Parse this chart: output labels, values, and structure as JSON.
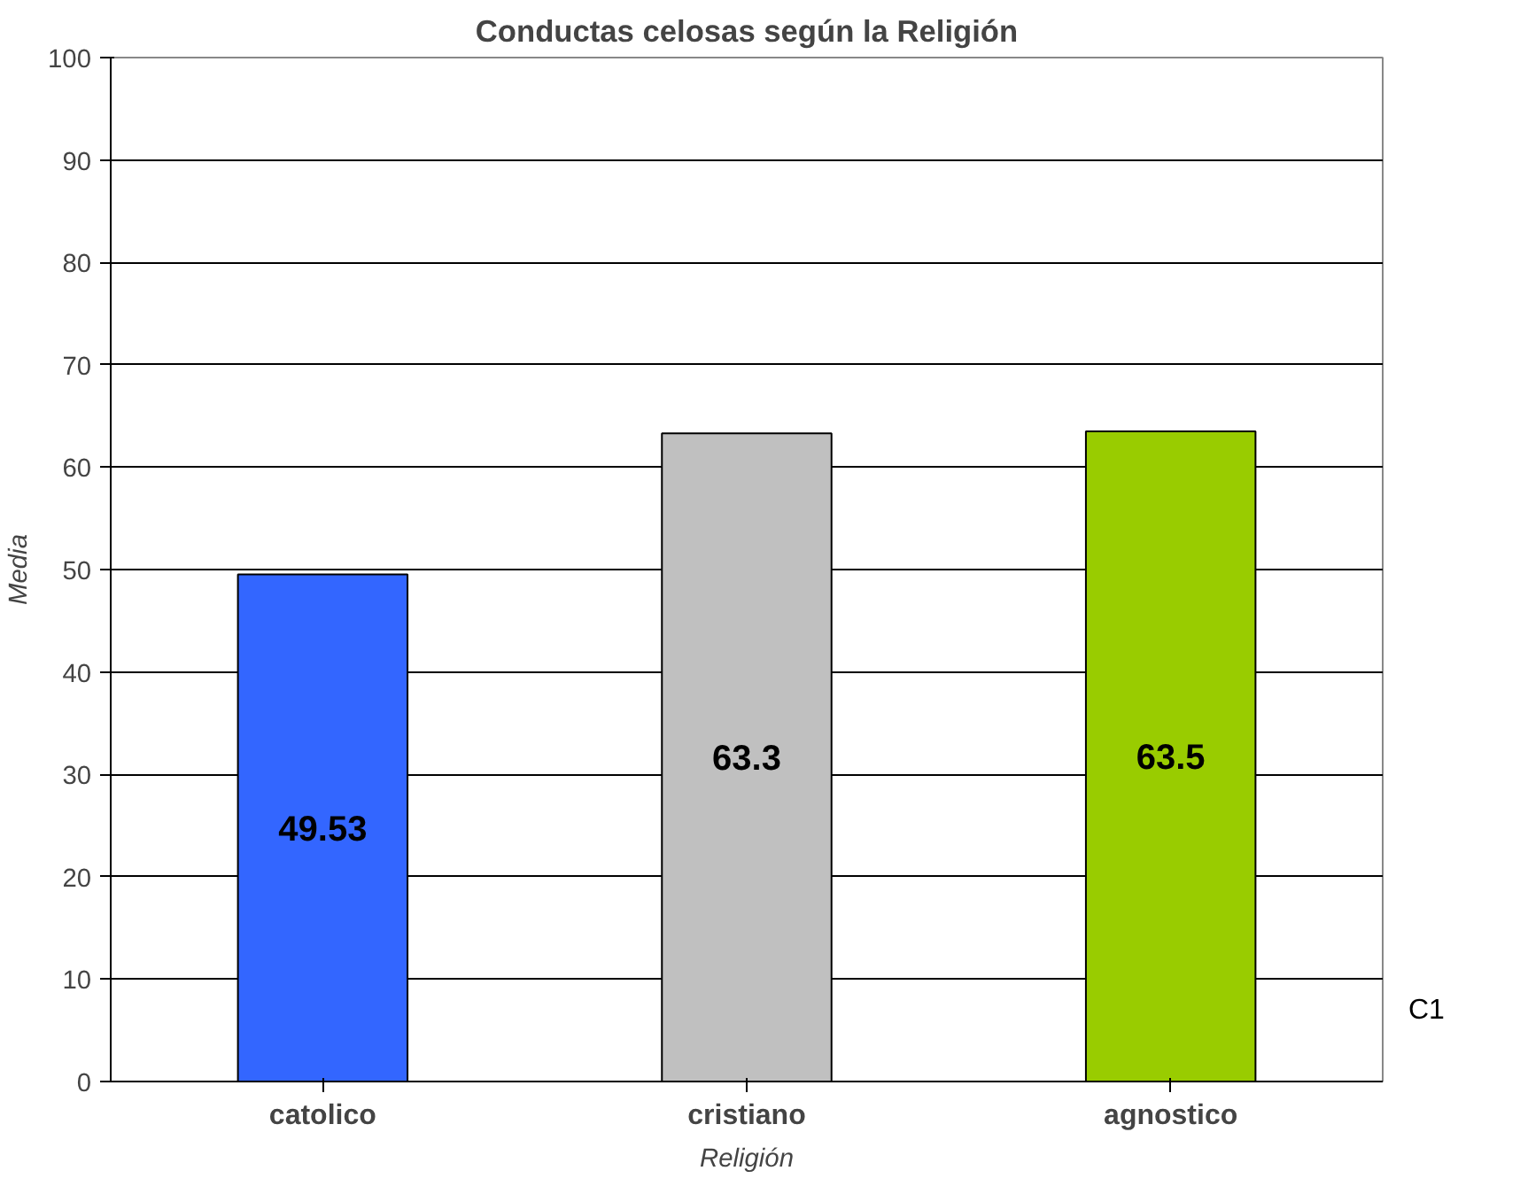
{
  "chart_data": {
    "type": "bar",
    "title": "Conductas celosas según la Religión",
    "xlabel": "Religión",
    "ylabel": "Media",
    "categories": [
      "catolico",
      "cristiano",
      "agnostico"
    ],
    "values": [
      49.53,
      63.3,
      63.5
    ],
    "colors": [
      "#3366ff",
      "#c0c0c0",
      "#99cc00"
    ],
    "data_labels": true,
    "ylim": [
      0,
      100
    ],
    "yticks": [
      0,
      10,
      20,
      30,
      40,
      50,
      60,
      70,
      80,
      90,
      100
    ],
    "grid": "y",
    "annotations": [
      "C1"
    ]
  }
}
